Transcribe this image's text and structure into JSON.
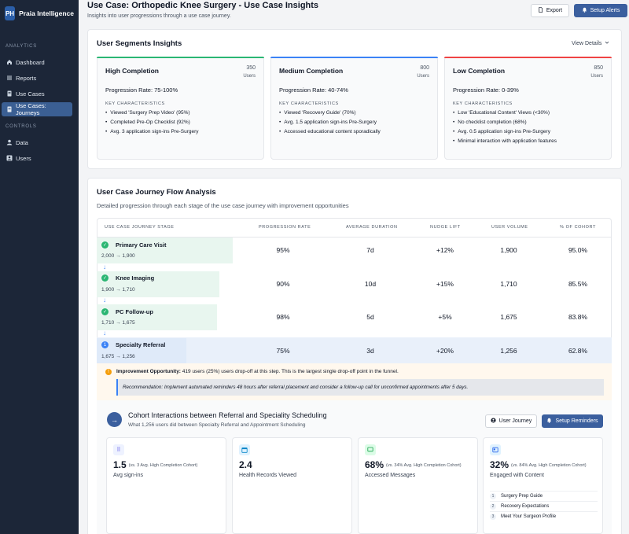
{
  "sidebar": {
    "logo": "PH",
    "brand": "Praia Intelligence",
    "analytics_label": "ANALYTICS",
    "controls_label": "CONTROLS",
    "analytics_items": [
      {
        "label": "Dashboard",
        "icon": "home-icon"
      },
      {
        "label": "Reports",
        "icon": "list-icon"
      },
      {
        "label": "Use Cases",
        "icon": "document-icon"
      },
      {
        "label": "Use Cases: Journeys",
        "icon": "journey-icon",
        "active": true
      }
    ],
    "control_items": [
      {
        "label": "Data",
        "icon": "user-icon"
      },
      {
        "label": "Users",
        "icon": "users-icon"
      }
    ]
  },
  "header": {
    "title": "Use Case: Orthopedic Knee Surgery - Use Case Insights",
    "subtitle": "Insights into user progressions through a use case journey.",
    "export_label": "Export",
    "alerts_label": "Setup Alerts"
  },
  "segments": {
    "title": "User Segments Insights",
    "view_details": "View Details",
    "kc_label": "KEY CHARACTERISTICS",
    "users_label": "Users",
    "items": [
      {
        "name": "High Completion",
        "count": "350",
        "rate": "Progression Rate: 75-100%",
        "color": "#2bb673",
        "traits": [
          "Viewed 'Surgery Prep Video' (95%)",
          "Completed Pre-Op Checklist (92%)",
          "Avg. 3 application sign-ins Pre-Surgery"
        ]
      },
      {
        "name": "Medium Completion",
        "count": "800",
        "rate": "Progression Rate: 40-74%",
        "color": "#3b82f6",
        "traits": [
          "Viewed 'Recovery Guide' (70%)",
          "Avg. 1.5 application sign-ins Pre-Surgery",
          "Accessed educational content sporadically"
        ]
      },
      {
        "name": "Low Completion",
        "count": "850",
        "rate": "Progression Rate: 0-39%",
        "color": "#ef4444",
        "traits": [
          "Low 'Educational Content' Views (<30%)",
          "No checklist completion (68%)",
          "Avg. 0.5 application sign-ins Pre-Surgery",
          "Minimal interaction with application features"
        ]
      }
    ]
  },
  "journey": {
    "title": "User Case Journey Flow Analysis",
    "subtitle": "Detailed progression through each stage of the use case journey with improvement opportunities",
    "columns": [
      "USE CASE JOURNEY STAGE",
      "PROGRESSION RATE",
      "AVERAGE DURATION",
      "NUDGE LIFT",
      "USER VOLUME",
      "% OF COHORT"
    ],
    "stages": [
      {
        "name": "Primary Care Visit",
        "from": "2,000",
        "to": "1,900",
        "rate": "95%",
        "duration": "7d",
        "lift": "+12%",
        "volume": "1,900",
        "cohort": "95.0%"
      },
      {
        "name": "Knee Imaging",
        "from": "1,900",
        "to": "1,710",
        "rate": "90%",
        "duration": "10d",
        "lift": "+15%",
        "volume": "1,710",
        "cohort": "85.5%"
      },
      {
        "name": "PC Follow-up",
        "from": "1,710",
        "to": "1,675",
        "rate": "98%",
        "duration": "5d",
        "lift": "+5%",
        "volume": "1,675",
        "cohort": "83.8%"
      },
      {
        "name": "Specialty Referral",
        "from": "1,675",
        "to": "1,256",
        "rate": "75%",
        "duration": "3d",
        "lift": "+20%",
        "volume": "1,256",
        "cohort": "62.8%"
      }
    ],
    "arrow": "→",
    "current_step": "1",
    "improvement_label": "Improvement Opportunity:",
    "improvement_text": " 419 users (25%) users drop-off at this step. This is the largest single drop-off point in the funnel.",
    "recommendation": "Recommendation: Implement automated reminders 48 hours after referral placement and consider a follow-up call for unconfirmed appointments after 5 days."
  },
  "cohort": {
    "title": "Cohort Interactions between Referral and Speciality Scheduling",
    "subtitle": "What 1,256 users did between Specialty Referral and Appointment Scheduling",
    "journey_button": "User Journey",
    "reminders_button": "Setup Reminders",
    "metrics": [
      {
        "value": "1.5",
        "vs": "(vs. 3 Avg. High Completion Cohort)",
        "label": "Avg sign-ins",
        "icon": "grid-icon"
      },
      {
        "value": "2.4",
        "vs": "",
        "label": "Health Records Viewed",
        "icon": "calendar-icon"
      },
      {
        "value": "68%",
        "vs": "(vs. 34% Avg. High Completion Cohort)",
        "label": "Accessed Messages",
        "icon": "message-icon"
      },
      {
        "value": "32%",
        "vs": "(vs. 84% Avg. High Completion Cohort)",
        "label": "Engaged with Content",
        "icon": "content-icon",
        "list": [
          "Surgery Prep Guide",
          "Recovery Expectations",
          "Meet Your Surgeon Profile"
        ]
      }
    ]
  }
}
